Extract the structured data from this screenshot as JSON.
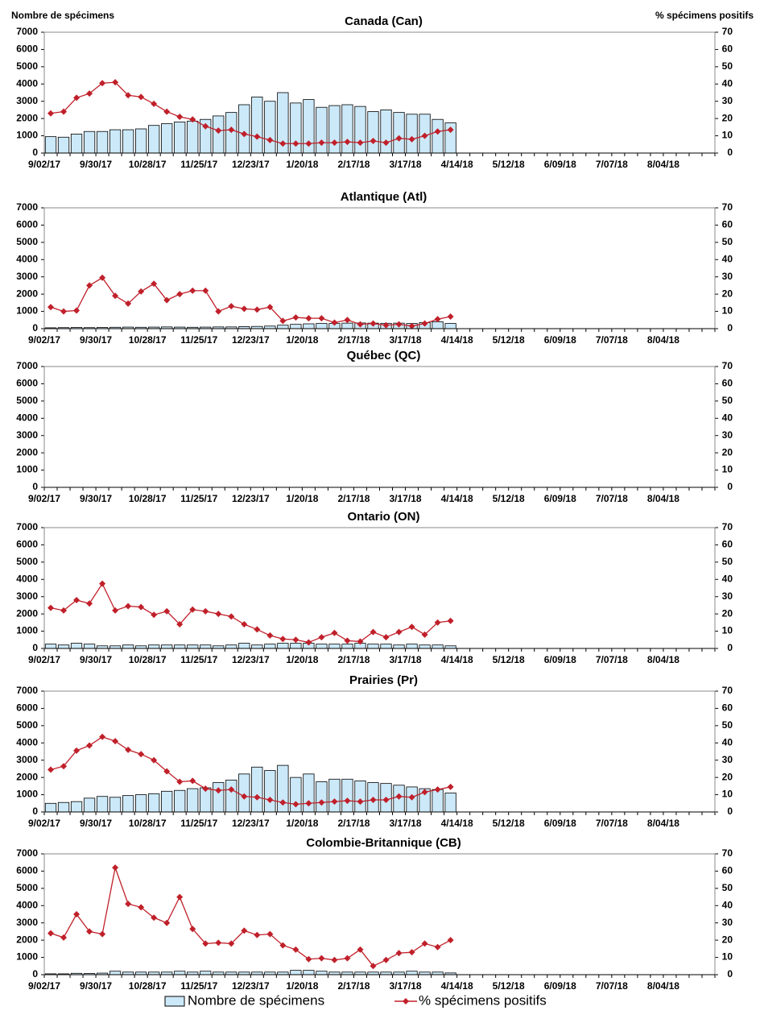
{
  "chart_data": [
    {
      "type": "combo",
      "title": "Canada (Can)",
      "y_label": "Nombre de spécimens",
      "y2_label": "% spécimens positifs",
      "ylim": [
        0,
        7000
      ],
      "yticks": [
        0,
        1000,
        2000,
        3000,
        4000,
        5000,
        6000,
        7000
      ],
      "y2lim": [
        0,
        70
      ],
      "y2ticks": [
        0,
        10,
        20,
        30,
        40,
        50,
        60,
        70
      ],
      "categories": [
        "9/02/17",
        null,
        null,
        null,
        "9/30/17",
        null,
        null,
        null,
        "10/28/17",
        null,
        null,
        null,
        "11/25/17",
        null,
        null,
        null,
        "12/23/17",
        null,
        null,
        null,
        "1/20/18",
        null,
        null,
        null,
        "2/17/18",
        null,
        null,
        null,
        "3/17/18",
        null,
        null,
        null,
        "4/14/18",
        null,
        null,
        null,
        "5/12/18",
        null,
        null,
        null,
        "6/09/18",
        null,
        null,
        null,
        "7/07/18",
        null,
        null,
        null,
        "8/04/18",
        null,
        null,
        null
      ],
      "series": [
        {
          "name": "Nombre de spécimens",
          "type": "bar",
          "color": "#cce9f9",
          "values": [
            950,
            920,
            1100,
            1250,
            1250,
            1350,
            1350,
            1400,
            1600,
            1700,
            1800,
            1850,
            1950,
            2150,
            2350,
            2800,
            3250,
            3000,
            3500,
            2900,
            3100,
            2650,
            2750,
            2800,
            2700,
            2400,
            2500,
            2350,
            2250,
            2250,
            1950,
            1750,
            null,
            null,
            null,
            null,
            null,
            null,
            null,
            null,
            null,
            null,
            null,
            null,
            null,
            null,
            null,
            null,
            null,
            null,
            null,
            null
          ]
        },
        {
          "name": "% spécimens positifs",
          "type": "line",
          "axis": "y2",
          "color": "#c0202a",
          "values": [
            23,
            24,
            32,
            34.5,
            40.5,
            41,
            33.5,
            32.5,
            28.5,
            24,
            21,
            19.5,
            15.5,
            13,
            13.5,
            11,
            9.5,
            7.5,
            5.5,
            5.5,
            5.5,
            6,
            6,
            6.5,
            6,
            7,
            6,
            8.5,
            8,
            10,
            12.5,
            13.5,
            null,
            null,
            null,
            null,
            null,
            null,
            null,
            null,
            null,
            null,
            null,
            null,
            null,
            null,
            null,
            null,
            null,
            null,
            null,
            null
          ]
        }
      ]
    },
    {
      "type": "combo",
      "title": "Atlantique (Atl)",
      "ylim": [
        0,
        7000
      ],
      "yticks": [
        0,
        1000,
        2000,
        3000,
        4000,
        5000,
        6000,
        7000
      ],
      "y2lim": [
        0,
        70
      ],
      "y2ticks": [
        0,
        10,
        20,
        30,
        40,
        50,
        60,
        70
      ],
      "categories": [
        "9/02/17",
        null,
        null,
        null,
        "9/30/17",
        null,
        null,
        null,
        "10/28/17",
        null,
        null,
        null,
        "11/25/17",
        null,
        null,
        null,
        "12/23/17",
        null,
        null,
        null,
        "1/20/18",
        null,
        null,
        null,
        "2/17/18",
        null,
        null,
        null,
        "3/17/18",
        null,
        null,
        null,
        "4/14/18",
        null,
        null,
        null,
        "5/12/18",
        null,
        null,
        null,
        "6/09/18",
        null,
        null,
        null,
        "7/07/18",
        null,
        null,
        null,
        "8/04/18",
        null,
        null,
        null
      ],
      "series": [
        {
          "name": "Nombre de spécimens",
          "type": "bar",
          "color": "#cce9f9",
          "values": [
            50,
            60,
            70,
            60,
            70,
            80,
            90,
            80,
            90,
            100,
            90,
            80,
            90,
            100,
            100,
            120,
            130,
            150,
            200,
            250,
            280,
            300,
            300,
            320,
            330,
            320,
            310,
            320,
            300,
            350,
            400,
            300,
            null,
            null,
            null,
            null,
            null,
            null,
            null,
            null,
            null,
            null,
            null,
            null,
            null,
            null,
            null,
            null,
            null,
            null,
            null,
            null
          ]
        },
        {
          "name": "% spécimens positifs",
          "type": "line",
          "axis": "y2",
          "color": "#c0202a",
          "values": [
            12.5,
            10,
            10.5,
            25,
            29.5,
            19,
            14.5,
            21.5,
            26,
            16.5,
            20,
            22,
            22,
            10,
            13,
            11.5,
            11,
            12.5,
            4.5,
            6.5,
            6,
            6,
            3.5,
            5,
            2.5,
            3,
            2,
            2.5,
            1.5,
            3,
            5.5,
            7,
            null,
            null,
            null,
            null,
            null,
            null,
            null,
            null,
            null,
            null,
            null,
            null,
            null,
            null,
            null,
            null,
            null,
            null,
            null,
            null
          ]
        }
      ]
    },
    {
      "type": "combo",
      "title": "Québec (QC)",
      "ylim": [
        0,
        7000
      ],
      "yticks": [
        0,
        1000,
        2000,
        3000,
        4000,
        5000,
        6000,
        7000
      ],
      "y2lim": [
        0,
        70
      ],
      "y2ticks": [
        0,
        10,
        20,
        30,
        40,
        50,
        60,
        70
      ],
      "categories": [
        "9/02/17",
        null,
        null,
        null,
        "9/30/17",
        null,
        null,
        null,
        "10/28/17",
        null,
        null,
        null,
        "11/25/17",
        null,
        null,
        null,
        "12/23/17",
        null,
        null,
        null,
        "1/20/18",
        null,
        null,
        null,
        "2/17/18",
        null,
        null,
        null,
        "3/17/18",
        null,
        null,
        null,
        "4/14/18",
        null,
        null,
        null,
        "5/12/18",
        null,
        null,
        null,
        "6/09/18",
        null,
        null,
        null,
        "7/07/18",
        null,
        null,
        null,
        "8/04/18",
        null,
        null,
        null
      ],
      "series": []
    },
    {
      "type": "combo",
      "title": "Ontario (ON)",
      "ylim": [
        0,
        7000
      ],
      "yticks": [
        0,
        1000,
        2000,
        3000,
        4000,
        5000,
        6000,
        7000
      ],
      "y2lim": [
        0,
        70
      ],
      "y2ticks": [
        0,
        10,
        20,
        30,
        40,
        50,
        60,
        70
      ],
      "categories": [
        "9/02/17",
        null,
        null,
        null,
        "9/30/17",
        null,
        null,
        null,
        "10/28/17",
        null,
        null,
        null,
        "11/25/17",
        null,
        null,
        null,
        "12/23/17",
        null,
        null,
        null,
        "1/20/18",
        null,
        null,
        null,
        "2/17/18",
        null,
        null,
        null,
        "3/17/18",
        null,
        null,
        null,
        "4/14/18",
        null,
        null,
        null,
        "5/12/18",
        null,
        null,
        null,
        "6/09/18",
        null,
        null,
        null,
        "7/07/18",
        null,
        null,
        null,
        "8/04/18",
        null,
        null,
        null
      ],
      "series": [
        {
          "name": "Nombre de spécimens",
          "type": "bar",
          "color": "#cce9f9",
          "values": [
            250,
            200,
            300,
            250,
            150,
            150,
            200,
            150,
            200,
            200,
            200,
            200,
            200,
            150,
            200,
            300,
            200,
            250,
            300,
            300,
            300,
            250,
            250,
            250,
            300,
            250,
            250,
            200,
            250,
            200,
            200,
            150,
            null,
            null,
            null,
            null,
            null,
            null,
            null,
            null,
            null,
            null,
            null,
            null,
            null,
            null,
            null,
            null,
            null,
            null,
            null,
            null
          ]
        },
        {
          "name": "% spécimens positifs",
          "type": "line",
          "axis": "y2",
          "color": "#c0202a",
          "values": [
            23.5,
            22,
            28,
            26,
            37.5,
            22,
            24.5,
            24,
            19.5,
            21.5,
            14,
            22.5,
            21.5,
            20,
            18.5,
            14,
            11,
            7.5,
            5.5,
            5,
            3.5,
            6.5,
            9,
            4.5,
            4,
            9.5,
            6.5,
            9.5,
            12.5,
            8,
            15,
            16,
            null,
            null,
            null,
            null,
            null,
            null,
            null,
            null,
            null,
            null,
            null,
            null,
            null,
            null,
            null,
            null,
            null,
            null,
            null,
            null
          ]
        }
      ]
    },
    {
      "type": "combo",
      "title": "Prairies (Pr)",
      "ylim": [
        0,
        7000
      ],
      "yticks": [
        0,
        1000,
        2000,
        3000,
        4000,
        5000,
        6000,
        7000
      ],
      "y2lim": [
        0,
        70
      ],
      "y2ticks": [
        0,
        10,
        20,
        30,
        40,
        50,
        60,
        70
      ],
      "categories": [
        "9/02/17",
        null,
        null,
        null,
        "9/30/17",
        null,
        null,
        null,
        "10/28/17",
        null,
        null,
        null,
        "11/25/17",
        null,
        null,
        null,
        "12/23/17",
        null,
        null,
        null,
        "1/20/18",
        null,
        null,
        null,
        "2/17/18",
        null,
        null,
        null,
        "3/17/18",
        null,
        null,
        null,
        "4/14/18",
        null,
        null,
        null,
        "5/12/18",
        null,
        null,
        null,
        "6/09/18",
        null,
        null,
        null,
        "7/07/18",
        null,
        null,
        null,
        "8/04/18",
        null,
        null,
        null
      ],
      "series": [
        {
          "name": "Nombre de spécimens",
          "type": "bar",
          "color": "#cce9f9",
          "values": [
            500,
            550,
            600,
            800,
            900,
            850,
            950,
            1000,
            1050,
            1200,
            1250,
            1350,
            1400,
            1700,
            1850,
            2200,
            2600,
            2400,
            2700,
            2000,
            2200,
            1750,
            1900,
            1900,
            1800,
            1700,
            1650,
            1550,
            1450,
            1350,
            1300,
            1100,
            null,
            null,
            null,
            null,
            null,
            null,
            null,
            null,
            null,
            null,
            null,
            null,
            null,
            null,
            null,
            null,
            null,
            null,
            null,
            null
          ]
        },
        {
          "name": "% spécimens positifs",
          "type": "line",
          "axis": "y2",
          "color": "#c0202a",
          "values": [
            24.5,
            26.5,
            35.5,
            38.5,
            43.5,
            41,
            36,
            33.5,
            30,
            23.5,
            17.5,
            18,
            13.5,
            12.5,
            13,
            9,
            8.5,
            7,
            5.5,
            4.5,
            5,
            5.5,
            6,
            6.5,
            6,
            7,
            7,
            9,
            8.5,
            11.5,
            13,
            14.5,
            null,
            null,
            null,
            null,
            null,
            null,
            null,
            null,
            null,
            null,
            null,
            null,
            null,
            null,
            null,
            null,
            null,
            null,
            null,
            null
          ]
        }
      ]
    },
    {
      "type": "combo",
      "title": "Colombie-Britannique (CB)",
      "ylim": [
        0,
        7000
      ],
      "yticks": [
        0,
        1000,
        2000,
        3000,
        4000,
        5000,
        6000,
        7000
      ],
      "y2lim": [
        0,
        70
      ],
      "y2ticks": [
        0,
        10,
        20,
        30,
        40,
        50,
        60,
        70
      ],
      "categories": [
        "9/02/17",
        null,
        null,
        null,
        "9/30/17",
        null,
        null,
        null,
        "10/28/17",
        null,
        null,
        null,
        "11/25/17",
        null,
        null,
        null,
        "12/23/17",
        null,
        null,
        null,
        "1/20/18",
        null,
        null,
        null,
        "2/17/18",
        null,
        null,
        null,
        "3/17/18",
        null,
        null,
        null,
        "4/14/18",
        null,
        null,
        null,
        "5/12/18",
        null,
        null,
        null,
        "6/09/18",
        null,
        null,
        null,
        "7/07/18",
        null,
        null,
        null,
        "8/04/18",
        null,
        null,
        null
      ],
      "series": [
        {
          "name": "Nombre de spécimens",
          "type": "bar",
          "color": "#cce9f9",
          "values": [
            50,
            50,
            80,
            70,
            90,
            200,
            150,
            150,
            150,
            150,
            200,
            150,
            200,
            150,
            150,
            150,
            150,
            150,
            150,
            250,
            250,
            200,
            150,
            150,
            150,
            150,
            150,
            150,
            200,
            150,
            150,
            100,
            null,
            null,
            null,
            null,
            null,
            null,
            null,
            null,
            null,
            null,
            null,
            null,
            null,
            null,
            null,
            null,
            null,
            null,
            null,
            null
          ]
        },
        {
          "name": "% spécimens positifs",
          "type": "line",
          "axis": "y2",
          "color": "#c0202a",
          "values": [
            24,
            21.5,
            35,
            25,
            23.5,
            62,
            41,
            39,
            33,
            30,
            45,
            26.5,
            18,
            18.5,
            18,
            25.5,
            23,
            23.5,
            17,
            14.5,
            9,
            9.5,
            8.5,
            9.5,
            14.5,
            5,
            8.5,
            12.5,
            13,
            18,
            16,
            20,
            null,
            null,
            null,
            null,
            null,
            null,
            null,
            null,
            null,
            null,
            null,
            null,
            null,
            null,
            null,
            null,
            null,
            null,
            null,
            null
          ]
        }
      ]
    }
  ]
}
